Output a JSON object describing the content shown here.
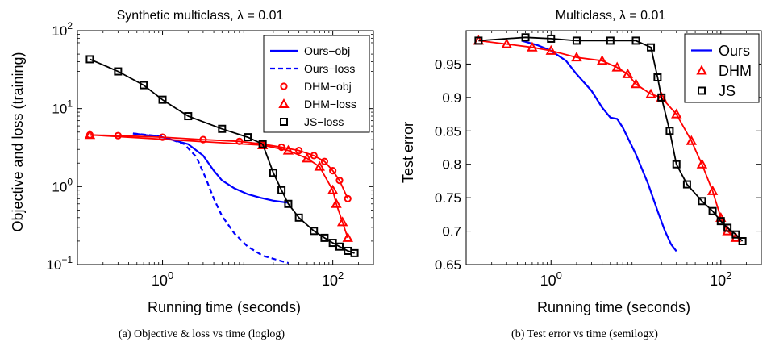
{
  "chart_data": [
    {
      "type": "line",
      "title": "Synthetic multiclass, λ = 0.01",
      "xlabel": "Running time (seconds)",
      "ylabel": "Objective and loss (training)",
      "xscale": "log",
      "yscale": "log",
      "xlim": [
        0.1,
        300
      ],
      "ylim": [
        0.1,
        100
      ],
      "xticks": [
        {
          "value": 1,
          "label": "10",
          "exp": "0"
        },
        {
          "value": 100,
          "label": "10",
          "exp": "2"
        }
      ],
      "yticks": [
        {
          "value": 0.1,
          "label": "10",
          "exp": "−1"
        },
        {
          "value": 1,
          "label": "10",
          "exp": "0"
        },
        {
          "value": 10,
          "label": "10",
          "exp": "1"
        },
        {
          "value": 100,
          "label": "10",
          "exp": "2"
        }
      ],
      "legend_position": "top-right",
      "series": [
        {
          "name": "Ours−obj",
          "color": "#0000ff",
          "dash": "solid",
          "marker": "none",
          "x": [
            0.45,
            1.0,
            2.0,
            3.0,
            4.0,
            5.0,
            7.0,
            10.0,
            14.0,
            20.0,
            30.0
          ],
          "y": [
            4.8,
            4.3,
            3.5,
            2.5,
            1.6,
            1.2,
            0.95,
            0.8,
            0.72,
            0.66,
            0.62
          ]
        },
        {
          "name": "Ours−loss",
          "color": "#0000ff",
          "dash": "dashed",
          "marker": "none",
          "x": [
            0.45,
            1.0,
            1.8,
            2.5,
            3.2,
            4.0,
            5.0,
            7.0,
            10.0,
            15.0,
            22.0,
            30.0
          ],
          "y": [
            4.8,
            4.4,
            3.5,
            2.4,
            1.3,
            0.7,
            0.42,
            0.25,
            0.17,
            0.13,
            0.115,
            0.105
          ]
        },
        {
          "name": "DHM−obj",
          "color": "#ff0000",
          "dash": "solid",
          "marker": "circle",
          "x": [
            0.14,
            0.3,
            1.0,
            3.0,
            8.0,
            15.0,
            25.0,
            40.0,
            60.0,
            80.0,
            100.0,
            120.0,
            150.0
          ],
          "y": [
            4.6,
            4.5,
            4.3,
            4.0,
            3.8,
            3.5,
            3.2,
            2.9,
            2.5,
            2.1,
            1.6,
            1.2,
            0.7
          ]
        },
        {
          "name": "DHM−loss",
          "color": "#ff0000",
          "dash": "solid",
          "marker": "triangle",
          "x": [
            0.14,
            15.0,
            30.0,
            50.0,
            70.0,
            100.0,
            110.0,
            130.0,
            150.0
          ],
          "y": [
            4.6,
            3.4,
            2.9,
            2.3,
            1.8,
            0.9,
            0.6,
            0.35,
            0.22
          ]
        },
        {
          "name": "JS−loss",
          "color": "#000000",
          "dash": "solid",
          "marker": "square",
          "x": [
            0.14,
            0.3,
            0.6,
            1.0,
            2.0,
            5.0,
            10.0,
            15.0,
            20.0,
            25.0,
            30.0,
            40.0,
            60.0,
            80.0,
            100.0,
            120.0,
            150.0,
            180.0
          ],
          "y": [
            43,
            30,
            20,
            13,
            8.0,
            5.5,
            4.3,
            3.5,
            1.5,
            0.9,
            0.6,
            0.4,
            0.27,
            0.22,
            0.19,
            0.17,
            0.15,
            0.14
          ]
        }
      ]
    },
    {
      "type": "line",
      "title": "Multiclass, λ = 0.01",
      "xlabel": "Running time (seconds)",
      "ylabel": "Test error",
      "xscale": "log",
      "yscale": "linear",
      "xlim": [
        0.1,
        300
      ],
      "ylim": [
        0.65,
        1.0
      ],
      "xticks": [
        {
          "value": 1,
          "label": "10",
          "exp": "0"
        },
        {
          "value": 100,
          "label": "10",
          "exp": "2"
        }
      ],
      "yticks": [
        {
          "value": 0.65,
          "label": "0.65"
        },
        {
          "value": 0.7,
          "label": "0.7"
        },
        {
          "value": 0.75,
          "label": "0.75"
        },
        {
          "value": 0.8,
          "label": "0.8"
        },
        {
          "value": 0.85,
          "label": "0.85"
        },
        {
          "value": 0.9,
          "label": "0.9"
        },
        {
          "value": 0.95,
          "label": "0.95"
        }
      ],
      "legend_position": "top-right",
      "series": [
        {
          "name": "Ours",
          "color": "#0000ff",
          "dash": "solid",
          "marker": "none",
          "x": [
            0.45,
            0.7,
            1.0,
            1.5,
            2.0,
            3.0,
            4.0,
            5.0,
            6.0,
            7.0,
            8.0,
            10.0,
            14.0,
            18.0,
            22.0,
            26.0,
            30.0
          ],
          "y": [
            0.985,
            0.978,
            0.97,
            0.955,
            0.935,
            0.91,
            0.885,
            0.87,
            0.868,
            0.855,
            0.84,
            0.815,
            0.77,
            0.73,
            0.7,
            0.68,
            0.67
          ]
        },
        {
          "name": "DHM",
          "color": "#ff0000",
          "dash": "solid",
          "marker": "triangle",
          "x": [
            0.14,
            0.3,
            0.6,
            1.0,
            2.0,
            4.0,
            6.0,
            8.0,
            10.0,
            15.0,
            20.0,
            30.0,
            45.0,
            60.0,
            80.0,
            100.0,
            120.0,
            150.0
          ],
          "y": [
            0.985,
            0.98,
            0.975,
            0.97,
            0.96,
            0.955,
            0.945,
            0.935,
            0.92,
            0.905,
            0.9,
            0.875,
            0.835,
            0.8,
            0.76,
            0.72,
            0.7,
            0.69
          ]
        },
        {
          "name": "JS",
          "color": "#000000",
          "dash": "solid",
          "marker": "square",
          "x": [
            0.14,
            0.5,
            1.0,
            2.0,
            5.0,
            10.0,
            15.0,
            18.0,
            20.0,
            25.0,
            30.0,
            40.0,
            60.0,
            80.0,
            100.0,
            120.0,
            150.0,
            180.0
          ],
          "y": [
            0.985,
            0.99,
            0.988,
            0.985,
            0.985,
            0.985,
            0.975,
            0.93,
            0.9,
            0.85,
            0.8,
            0.77,
            0.745,
            0.73,
            0.715,
            0.705,
            0.695,
            0.685
          ]
        }
      ]
    }
  ],
  "captions": [
    "(a)  Objective & loss vs time (loglog)",
    "(b)  Test error vs time (semilogx)"
  ]
}
